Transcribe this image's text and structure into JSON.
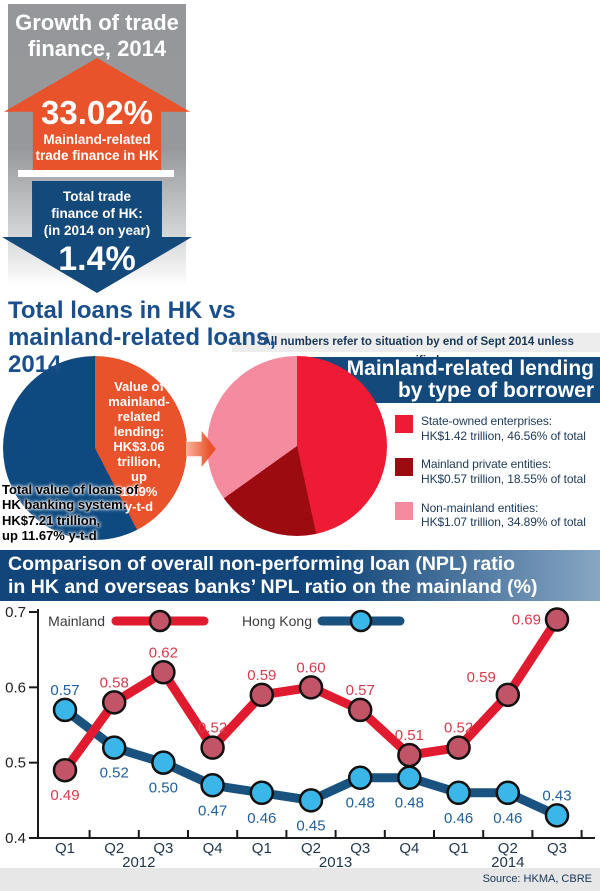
{
  "top_panel": {
    "title": "Growth of trade\nfinance, 2014",
    "up_arrow": {
      "value": "33.02%",
      "caption": "Mainland-related\ntrade finance in HK"
    },
    "down_arrow": {
      "caption": "Total trade\nfinance of HK:\n(in 2014 on year)",
      "value": "1.4%"
    }
  },
  "loans_section": {
    "title": "Total loans in HK vs\nmainland-related loans,\n2014",
    "note": "*All numbers refer to situation by end of Sept 2014 unless specified.",
    "left_pie": {
      "slice_label": "Value of\nmainland-\nrelated\nlending:\nHK$3.06\ntrillion,\nup\n16.9%\ny-t-d",
      "total_label": "Total value of loans of\nHK banking system:\nHK$7.21 trillion,\nup 11.67% y-t-d",
      "mainland_share_pct": 42.44,
      "colors": {
        "mainland": "#e9532b",
        "total": "#0e4a80"
      }
    },
    "right_pie": {
      "header": "Mainland-related lending\nby type of borrower",
      "slices": [
        {
          "label": "State-owned enterprises:",
          "value_text": "HK$1.42 trillion, 46.56% of total",
          "pct": 46.56,
          "color": "#ed1b34"
        },
        {
          "label": "Mainland private entities:",
          "value_text": "HK$0.57 trillion, 18.55% of total",
          "pct": 18.55,
          "color": "#9c0b10"
        },
        {
          "label": "Non-mainland entities:",
          "value_text": "HK$1.07 trillion, 34.89% of total",
          "pct": 34.89,
          "color": "#f58b9e"
        }
      ]
    }
  },
  "chart_data": {
    "type": "line",
    "title": "Comparison of overall non-performing loan (NPL) ratio\nin HK and overseas banks’ NPL ratio on the mainland (%)",
    "categories": [
      "Q1",
      "Q2",
      "Q3",
      "Q4",
      "Q1",
      "Q2",
      "Q3",
      "Q4",
      "Q1",
      "Q2",
      "Q3"
    ],
    "year_groups": [
      {
        "label": "2012",
        "count": 4
      },
      {
        "label": "2013",
        "count": 4
      },
      {
        "label": "2014",
        "count": 3
      }
    ],
    "ylim": [
      0.4,
      0.7
    ],
    "yticks": [
      0.4,
      0.5,
      0.6,
      0.7
    ],
    "grid": false,
    "legend_position": "top",
    "series": [
      {
        "name": "Mainland",
        "color": "#e11b2f",
        "marker_color": "#c25468",
        "label_color": "#d53c4b",
        "values": [
          0.49,
          0.58,
          0.62,
          0.52,
          0.59,
          0.6,
          0.57,
          0.51,
          0.52,
          0.59,
          0.69
        ],
        "label_pos": [
          "below",
          "above",
          "above",
          "above",
          "above",
          "above",
          "above",
          "above",
          "above",
          "above-left",
          "left"
        ]
      },
      {
        "name": "Hong Kong",
        "color": "#1a527f",
        "marker_color": "#3bb6e9",
        "label_color": "#1f5f9e",
        "values": [
          0.57,
          0.52,
          0.5,
          0.47,
          0.46,
          0.45,
          0.48,
          0.48,
          0.46,
          0.46,
          0.43
        ],
        "label_pos": [
          "above",
          "below",
          "below",
          "below",
          "below",
          "below",
          "below",
          "below",
          "below",
          "below",
          "above"
        ]
      }
    ]
  },
  "source": "Source: HKMA, CBRE"
}
